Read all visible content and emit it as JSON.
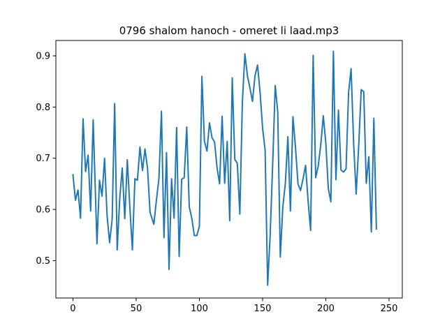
{
  "chart_data": {
    "type": "line",
    "title": "0796 shalom hanoch - omeret li laad.mp3",
    "xlabel": "",
    "ylabel": "",
    "xlim": [
      -13.5,
      260.5
    ],
    "ylim": [
      0.427,
      0.93
    ],
    "xticks": [
      0,
      50,
      100,
      150,
      200,
      250
    ],
    "yticks": [
      0.5,
      0.6,
      0.7,
      0.8,
      0.9
    ],
    "xtick_labels": [
      "0",
      "50",
      "100",
      "150",
      "200",
      "250"
    ],
    "ytick_labels": [
      "0.5",
      "0.6",
      "0.7",
      "0.8",
      "0.9"
    ],
    "grid": false,
    "series": [
      {
        "color": "#1f77b4",
        "points": [
          [
            0,
            0.668
          ],
          [
            2,
            0.618
          ],
          [
            4,
            0.638
          ],
          [
            6,
            0.583
          ],
          [
            8,
            0.777
          ],
          [
            10,
            0.674
          ],
          [
            12,
            0.706
          ],
          [
            14,
            0.597
          ],
          [
            16,
            0.775
          ],
          [
            19,
            0.533
          ],
          [
            21,
            0.657
          ],
          [
            23,
            0.626
          ],
          [
            25,
            0.7
          ],
          [
            27,
            0.588
          ],
          [
            29,
            0.535
          ],
          [
            31,
            0.58
          ],
          [
            33,
            0.807
          ],
          [
            35,
            0.521
          ],
          [
            37,
            0.621
          ],
          [
            39,
            0.681
          ],
          [
            41,
            0.582
          ],
          [
            43,
            0.697
          ],
          [
            45,
            0.605
          ],
          [
            47,
            0.521
          ],
          [
            49,
            0.66
          ],
          [
            51,
            0.657
          ],
          [
            53,
            0.722
          ],
          [
            55,
            0.676
          ],
          [
            57,
            0.718
          ],
          [
            59,
            0.68
          ],
          [
            61,
            0.594
          ],
          [
            64,
            0.571
          ],
          [
            66,
            0.618
          ],
          [
            68,
            0.66
          ],
          [
            70,
            0.792
          ],
          [
            72,
            0.545
          ],
          [
            74,
            0.711
          ],
          [
            76,
            0.483
          ],
          [
            78,
            0.66
          ],
          [
            80,
            0.583
          ],
          [
            82,
            0.76
          ],
          [
            84,
            0.508
          ],
          [
            86,
            0.659
          ],
          [
            88,
            0.662
          ],
          [
            90,
            0.761
          ],
          [
            92,
            0.605
          ],
          [
            94,
            0.583
          ],
          [
            96,
            0.549
          ],
          [
            98,
            0.549
          ],
          [
            100,
            0.567
          ],
          [
            102,
            0.86
          ],
          [
            104,
            0.733
          ],
          [
            106,
            0.714
          ],
          [
            108,
            0.769
          ],
          [
            110,
            0.74
          ],
          [
            112,
            0.732
          ],
          [
            114,
            0.681
          ],
          [
            116,
            0.65
          ],
          [
            118,
            0.782
          ],
          [
            120,
            0.651
          ],
          [
            122,
            0.733
          ],
          [
            124,
            0.578
          ],
          [
            126,
            0.857
          ],
          [
            128,
            0.698
          ],
          [
            130,
            0.69
          ],
          [
            132,
            0.591
          ],
          [
            134,
            0.809
          ],
          [
            136,
            0.904
          ],
          [
            138,
            0.861
          ],
          [
            140,
            0.837
          ],
          [
            142,
            0.811
          ],
          [
            144,
            0.861
          ],
          [
            146,
            0.882
          ],
          [
            148,
            0.829
          ],
          [
            150,
            0.759
          ],
          [
            152,
            0.716
          ],
          [
            154,
            0.452
          ],
          [
            156,
            0.55
          ],
          [
            158,
            0.69
          ],
          [
            160,
            0.842
          ],
          [
            162,
            0.79
          ],
          [
            164,
            0.507
          ],
          [
            166,
            0.605
          ],
          [
            168,
            0.651
          ],
          [
            170,
            0.742
          ],
          [
            172,
            0.597
          ],
          [
            174,
            0.781
          ],
          [
            176,
            0.722
          ],
          [
            178,
            0.65
          ],
          [
            180,
            0.637
          ],
          [
            182,
            0.66
          ],
          [
            184,
            0.686
          ],
          [
            186,
            0.616
          ],
          [
            188,
            0.559
          ],
          [
            190,
            0.901
          ],
          [
            192,
            0.662
          ],
          [
            194,
            0.685
          ],
          [
            196,
            0.726
          ],
          [
            198,
            0.783
          ],
          [
            200,
            0.73
          ],
          [
            202,
            0.641
          ],
          [
            204,
            0.615
          ],
          [
            206,
            0.909
          ],
          [
            208,
            0.658
          ],
          [
            210,
            0.794
          ],
          [
            212,
            0.677
          ],
          [
            214,
            0.673
          ],
          [
            216,
            0.679
          ],
          [
            218,
            0.828
          ],
          [
            220,
            0.875
          ],
          [
            222,
            0.73
          ],
          [
            224,
            0.63
          ],
          [
            226,
            0.723
          ],
          [
            228,
            0.834
          ],
          [
            230,
            0.83
          ],
          [
            232,
            0.651
          ],
          [
            234,
            0.703
          ],
          [
            236,
            0.556
          ],
          [
            238,
            0.778
          ],
          [
            240,
            0.562
          ]
        ]
      }
    ]
  }
}
